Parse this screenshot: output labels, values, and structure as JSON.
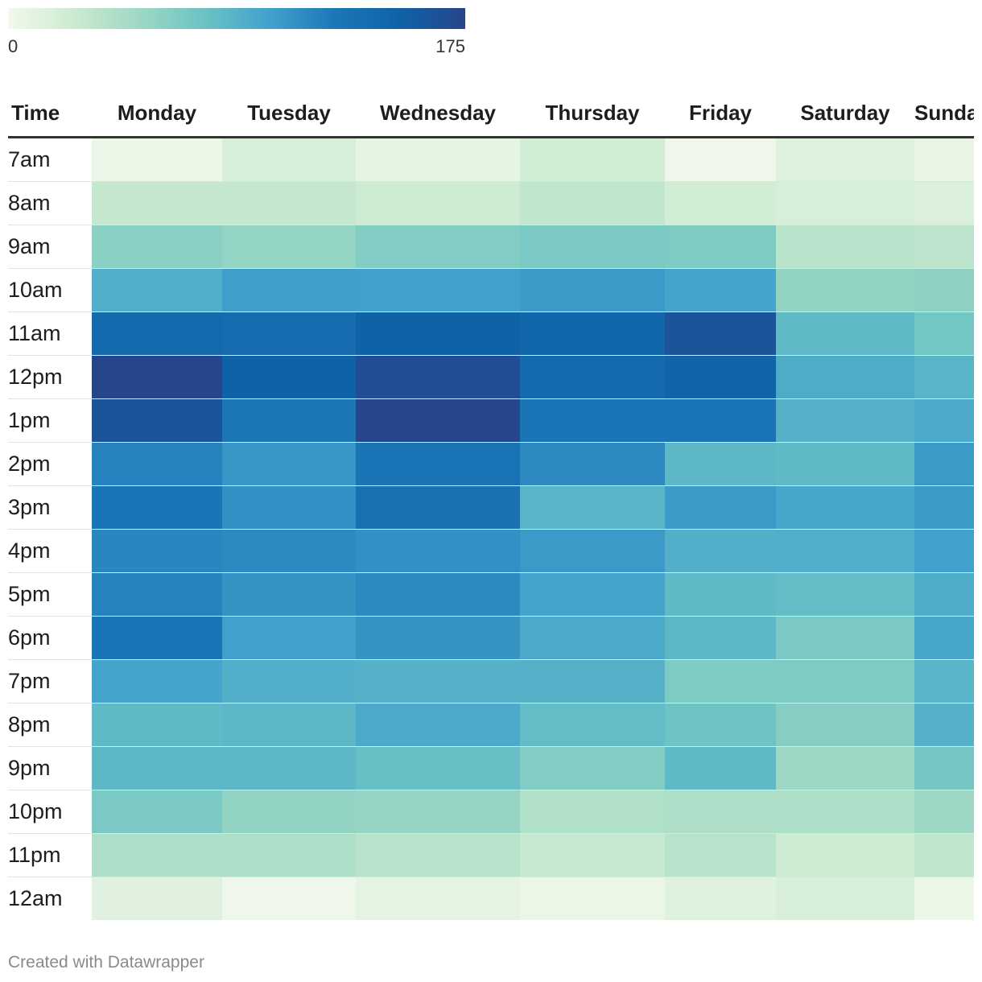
{
  "chart_data": {
    "type": "heatmap",
    "scale": {
      "min": 0,
      "max": 175,
      "min_label": "0",
      "max_label": "175",
      "colors": [
        "#f2f9ec",
        "#cdebd0",
        "#9ed8c4",
        "#6cc3c4",
        "#42a1cc",
        "#1d77b7",
        "#0f62a6",
        "#27458b"
      ]
    },
    "corner_label": "Time",
    "columns": [
      "Monday",
      "Tuesday",
      "Wednesday",
      "Thursday",
      "Friday",
      "Saturday",
      "Sunday"
    ],
    "rows": [
      {
        "label": "7am",
        "values": [
          5,
          18,
          8,
          22,
          3,
          14,
          7
        ]
      },
      {
        "label": "8am",
        "values": [
          30,
          30,
          24,
          32,
          22,
          18,
          16
        ]
      },
      {
        "label": "9am",
        "values": [
          60,
          55,
          64,
          68,
          66,
          36,
          34
        ]
      },
      {
        "label": "10am",
        "values": [
          90,
          102,
          100,
          104,
          98,
          56,
          58
        ]
      },
      {
        "label": "11am",
        "values": [
          140,
          138,
          150,
          146,
          162,
          82,
          72
        ]
      },
      {
        "label": "12pm",
        "values": [
          174,
          150,
          168,
          140,
          148,
          92,
          86
        ]
      },
      {
        "label": "1pm",
        "values": [
          162,
          126,
          174,
          128,
          130,
          88,
          94
        ]
      },
      {
        "label": "2pm",
        "values": [
          118,
          106,
          130,
          114,
          84,
          82,
          104
        ]
      },
      {
        "label": "3pm",
        "values": [
          128,
          110,
          132,
          86,
          104,
          96,
          104
        ]
      },
      {
        "label": "4pm",
        "values": [
          116,
          114,
          110,
          104,
          90,
          90,
          100
        ]
      },
      {
        "label": "5pm",
        "values": [
          118,
          108,
          114,
          98,
          82,
          80,
          92
        ]
      },
      {
        "label": "6pm",
        "values": [
          130,
          100,
          108,
          94,
          84,
          68,
          96
        ]
      },
      {
        "label": "7pm",
        "values": [
          98,
          90,
          88,
          88,
          66,
          66,
          86
        ]
      },
      {
        "label": "8pm",
        "values": [
          82,
          84,
          94,
          80,
          74,
          62,
          88
        ]
      },
      {
        "label": "9pm",
        "values": [
          84,
          84,
          78,
          64,
          82,
          50,
          70
        ]
      },
      {
        "label": "10pm",
        "values": [
          68,
          56,
          54,
          40,
          42,
          42,
          50
        ]
      },
      {
        "label": "11pm",
        "values": [
          42,
          42,
          36,
          28,
          36,
          24,
          32
        ]
      },
      {
        "label": "12am",
        "values": [
          12,
          3,
          9,
          5,
          13,
          18,
          4
        ]
      }
    ]
  },
  "footer": "Created with Datawrapper"
}
